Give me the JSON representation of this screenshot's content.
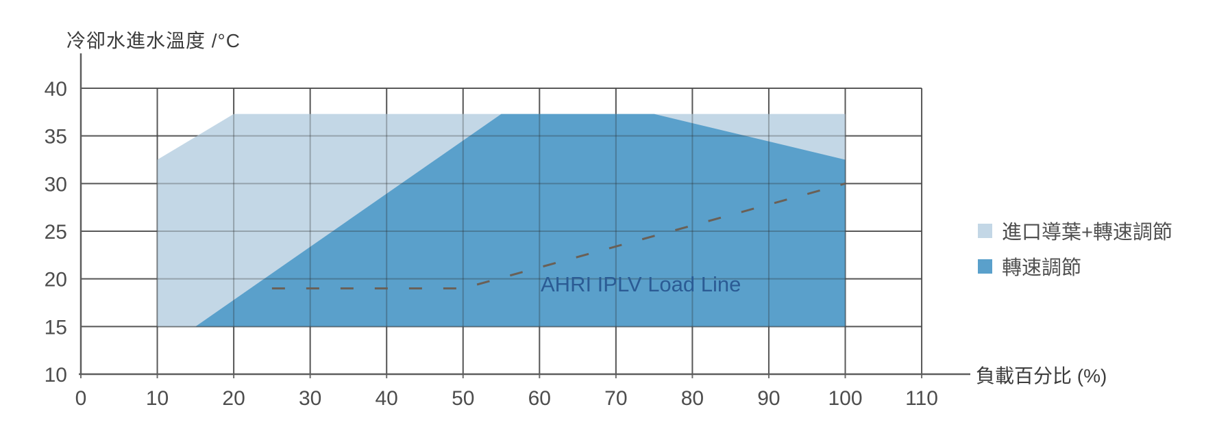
{
  "chart_data": {
    "type": "area",
    "y_axis_title": "冷卻水進水溫度 /°C",
    "x_axis_title": "負載百分比 (%)",
    "xlim": [
      0,
      110
    ],
    "ylim": [
      10,
      40
    ],
    "x_ticks": [
      0,
      10,
      20,
      30,
      40,
      50,
      60,
      70,
      80,
      90,
      100,
      110
    ],
    "y_ticks": [
      10,
      15,
      20,
      25,
      30,
      35,
      40
    ],
    "grid": "on",
    "legend_position": "right",
    "series": [
      {
        "name": "進口導葉+轉速調節",
        "color": "#c3d7e6",
        "points": [
          [
            10,
            15
          ],
          [
            10,
            32.5
          ],
          [
            20,
            37.3
          ],
          [
            100,
            37.3
          ],
          [
            100,
            15
          ]
        ]
      },
      {
        "name": "轉速調節",
        "color": "#5aa0cb",
        "points": [
          [
            15,
            15
          ],
          [
            55,
            37.3
          ],
          [
            75,
            37.3
          ],
          [
            100,
            32.5
          ],
          [
            100,
            15
          ]
        ]
      }
    ],
    "load_line": {
      "label": "AHRI IPLV Load Line",
      "line_color": "#6a6056",
      "label_color": "#2b5b94",
      "points": [
        [
          25,
          19
        ],
        [
          50,
          19
        ],
        [
          100,
          30
        ]
      ]
    },
    "colors": {
      "grid": "#6e6e6e",
      "axis": "#5c5c5c",
      "tick_text": "#4d4d4d"
    }
  }
}
